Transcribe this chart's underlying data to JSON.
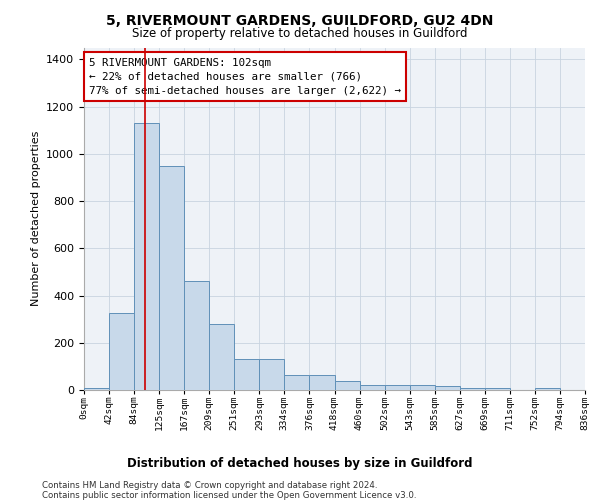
{
  "title1": "5, RIVERMOUNT GARDENS, GUILDFORD, GU2 4DN",
  "title2": "Size of property relative to detached houses in Guildford",
  "xlabel": "Distribution of detached houses by size in Guildford",
  "ylabel": "Number of detached properties",
  "bin_labels": [
    "0sqm",
    "42sqm",
    "84sqm",
    "125sqm",
    "167sqm",
    "209sqm",
    "251sqm",
    "293sqm",
    "334sqm",
    "376sqm",
    "418sqm",
    "460sqm",
    "502sqm",
    "543sqm",
    "585sqm",
    "627sqm",
    "669sqm",
    "711sqm",
    "752sqm",
    "794sqm",
    "836sqm"
  ],
  "bar_heights": [
    10,
    325,
    1130,
    950,
    460,
    280,
    130,
    130,
    65,
    65,
    40,
    20,
    20,
    20,
    15,
    10,
    10,
    0,
    10,
    0,
    0
  ],
  "bar_color": "#c8d9ea",
  "bar_edge_color": "#6090b8",
  "red_line_x": 102,
  "annotation_text": "5 RIVERMOUNT GARDENS: 102sqm\n← 22% of detached houses are smaller (766)\n77% of semi-detached houses are larger (2,622) →",
  "annotation_box_color": "#ffffff",
  "annotation_box_edge_color": "#cc0000",
  "ylim": [
    0,
    1450
  ],
  "yticks": [
    0,
    200,
    400,
    600,
    800,
    1000,
    1200,
    1400
  ],
  "footer1": "Contains HM Land Registry data © Crown copyright and database right 2024.",
  "footer2": "Contains public sector information licensed under the Open Government Licence v3.0.",
  "bg_color": "#eef2f7",
  "grid_color": "#c8d4e0"
}
